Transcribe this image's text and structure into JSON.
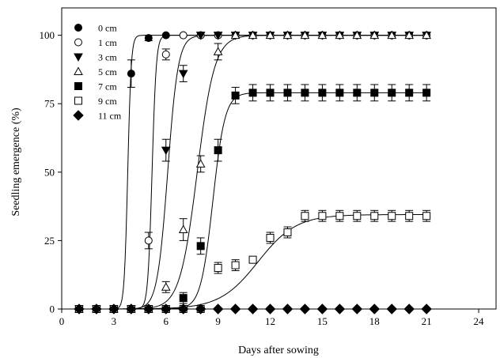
{
  "chart_data": {
    "type": "scatter",
    "xlabel": "Days after sowing",
    "ylabel": "Seedling emergence (%)",
    "xlim": [
      0,
      25
    ],
    "ylim": [
      0,
      110
    ],
    "xticks": [
      "0",
      "3",
      "6",
      "9",
      "12",
      "15",
      "18",
      "21",
      "24"
    ],
    "yticks": [
      "0",
      "25",
      "50",
      "75",
      "100"
    ],
    "grid": false,
    "legend_position": "top-left",
    "series": [
      {
        "name": "0 cm",
        "marker": "filled-circle",
        "fit": {
          "max": 100,
          "x50": 3.8,
          "slope": 0.1
        },
        "points": [
          {
            "x": 1,
            "y": 0,
            "err": 0
          },
          {
            "x": 2,
            "y": 0,
            "err": 0
          },
          {
            "x": 3,
            "y": 0,
            "err": 0
          },
          {
            "x": 4,
            "y": 86,
            "err": 5
          },
          {
            "x": 5,
            "y": 99,
            "err": 1
          },
          {
            "x": 6,
            "y": 100,
            "err": 0
          },
          {
            "x": 7,
            "y": 100,
            "err": 0
          },
          {
            "x": 8,
            "y": 100,
            "err": 0
          },
          {
            "x": 9,
            "y": 100,
            "err": 0
          },
          {
            "x": 10,
            "y": 100,
            "err": 0
          },
          {
            "x": 11,
            "y": 100,
            "err": 0
          },
          {
            "x": 12,
            "y": 100,
            "err": 0
          },
          {
            "x": 13,
            "y": 100,
            "err": 0
          },
          {
            "x": 14,
            "y": 100,
            "err": 0
          },
          {
            "x": 15,
            "y": 100,
            "err": 0
          },
          {
            "x": 16,
            "y": 100,
            "err": 0
          },
          {
            "x": 17,
            "y": 100,
            "err": 0
          },
          {
            "x": 18,
            "y": 100,
            "err": 0
          },
          {
            "x": 19,
            "y": 100,
            "err": 0
          },
          {
            "x": 20,
            "y": 100,
            "err": 0
          },
          {
            "x": 21,
            "y": 100,
            "err": 0
          }
        ]
      },
      {
        "name": "1 cm",
        "marker": "open-circle",
        "fit": {
          "max": 100,
          "x50": 5.2,
          "slope": 0.12
        },
        "points": [
          {
            "x": 1,
            "y": 0,
            "err": 0
          },
          {
            "x": 2,
            "y": 0,
            "err": 0
          },
          {
            "x": 3,
            "y": 0,
            "err": 0
          },
          {
            "x": 4,
            "y": 0,
            "err": 0
          },
          {
            "x": 5,
            "y": 25,
            "err": 3
          },
          {
            "x": 6,
            "y": 93,
            "err": 2
          },
          {
            "x": 7,
            "y": 100,
            "err": 0
          },
          {
            "x": 8,
            "y": 100,
            "err": 0
          },
          {
            "x": 9,
            "y": 100,
            "err": 0
          },
          {
            "x": 10,
            "y": 100,
            "err": 0
          },
          {
            "x": 11,
            "y": 100,
            "err": 0
          },
          {
            "x": 12,
            "y": 100,
            "err": 0
          },
          {
            "x": 13,
            "y": 100,
            "err": 0
          },
          {
            "x": 14,
            "y": 100,
            "err": 0
          },
          {
            "x": 15,
            "y": 100,
            "err": 0
          },
          {
            "x": 16,
            "y": 100,
            "err": 0
          },
          {
            "x": 17,
            "y": 100,
            "err": 0
          },
          {
            "x": 18,
            "y": 100,
            "err": 0
          },
          {
            "x": 19,
            "y": 100,
            "err": 0
          },
          {
            "x": 20,
            "y": 100,
            "err": 0
          },
          {
            "x": 21,
            "y": 100,
            "err": 0
          }
        ]
      },
      {
        "name": "3 cm",
        "marker": "filled-triangle-down",
        "fit": {
          "max": 100,
          "x50": 6.1,
          "slope": 0.3
        },
        "points": [
          {
            "x": 1,
            "y": 0,
            "err": 0
          },
          {
            "x": 2,
            "y": 0,
            "err": 0
          },
          {
            "x": 3,
            "y": 0,
            "err": 0
          },
          {
            "x": 4,
            "y": 0,
            "err": 0
          },
          {
            "x": 5,
            "y": 0,
            "err": 0
          },
          {
            "x": 6,
            "y": 58,
            "err": 4
          },
          {
            "x": 7,
            "y": 86,
            "err": 3
          },
          {
            "x": 8,
            "y": 100,
            "err": 0
          },
          {
            "x": 9,
            "y": 100,
            "err": 0
          },
          {
            "x": 10,
            "y": 100,
            "err": 0
          },
          {
            "x": 11,
            "y": 100,
            "err": 0
          },
          {
            "x": 12,
            "y": 100,
            "err": 0
          },
          {
            "x": 13,
            "y": 100,
            "err": 0
          },
          {
            "x": 14,
            "y": 100,
            "err": 0
          },
          {
            "x": 15,
            "y": 100,
            "err": 0
          },
          {
            "x": 16,
            "y": 100,
            "err": 0
          },
          {
            "x": 17,
            "y": 100,
            "err": 0
          },
          {
            "x": 18,
            "y": 100,
            "err": 0
          },
          {
            "x": 19,
            "y": 100,
            "err": 0
          },
          {
            "x": 20,
            "y": 100,
            "err": 0
          },
          {
            "x": 21,
            "y": 100,
            "err": 0
          }
        ]
      },
      {
        "name": "5 cm",
        "marker": "open-triangle-up",
        "fit": {
          "max": 100,
          "x50": 7.8,
          "slope": 0.5
        },
        "points": [
          {
            "x": 1,
            "y": 0,
            "err": 0
          },
          {
            "x": 2,
            "y": 0,
            "err": 0
          },
          {
            "x": 3,
            "y": 0,
            "err": 0
          },
          {
            "x": 4,
            "y": 0,
            "err": 0
          },
          {
            "x": 5,
            "y": 0,
            "err": 0
          },
          {
            "x": 6,
            "y": 8,
            "err": 2
          },
          {
            "x": 7,
            "y": 29,
            "err": 4
          },
          {
            "x": 8,
            "y": 53,
            "err": 3
          },
          {
            "x": 9,
            "y": 94,
            "err": 3
          },
          {
            "x": 10,
            "y": 100,
            "err": 0
          },
          {
            "x": 11,
            "y": 100,
            "err": 0
          },
          {
            "x": 12,
            "y": 100,
            "err": 0
          },
          {
            "x": 13,
            "y": 100,
            "err": 0
          },
          {
            "x": 14,
            "y": 100,
            "err": 0
          },
          {
            "x": 15,
            "y": 100,
            "err": 0
          },
          {
            "x": 16,
            "y": 100,
            "err": 0
          },
          {
            "x": 17,
            "y": 100,
            "err": 0
          },
          {
            "x": 18,
            "y": 100,
            "err": 0
          },
          {
            "x": 19,
            "y": 100,
            "err": 0
          },
          {
            "x": 20,
            "y": 100,
            "err": 0
          },
          {
            "x": 21,
            "y": 100,
            "err": 0
          }
        ]
      },
      {
        "name": "7 cm",
        "marker": "filled-square",
        "fit": {
          "max": 79,
          "x50": 8.7,
          "slope": 0.35
        },
        "points": [
          {
            "x": 1,
            "y": 0,
            "err": 0
          },
          {
            "x": 2,
            "y": 0,
            "err": 0
          },
          {
            "x": 3,
            "y": 0,
            "err": 0
          },
          {
            "x": 4,
            "y": 0,
            "err": 0
          },
          {
            "x": 5,
            "y": 0,
            "err": 0
          },
          {
            "x": 6,
            "y": 0,
            "err": 0
          },
          {
            "x": 7,
            "y": 4,
            "err": 2
          },
          {
            "x": 8,
            "y": 23,
            "err": 3
          },
          {
            "x": 9,
            "y": 58,
            "err": 4
          },
          {
            "x": 10,
            "y": 78,
            "err": 3
          },
          {
            "x": 11,
            "y": 79,
            "err": 3
          },
          {
            "x": 12,
            "y": 79,
            "err": 3
          },
          {
            "x": 13,
            "y": 79,
            "err": 3
          },
          {
            "x": 14,
            "y": 79,
            "err": 3
          },
          {
            "x": 15,
            "y": 79,
            "err": 3
          },
          {
            "x": 16,
            "y": 79,
            "err": 3
          },
          {
            "x": 17,
            "y": 79,
            "err": 3
          },
          {
            "x": 18,
            "y": 79,
            "err": 3
          },
          {
            "x": 19,
            "y": 79,
            "err": 3
          },
          {
            "x": 20,
            "y": 79,
            "err": 3
          },
          {
            "x": 21,
            "y": 79,
            "err": 3
          }
        ]
      },
      {
        "name": "9 cm",
        "marker": "open-square",
        "fit": {
          "max": 34.5,
          "x50": 11.3,
          "slope": 1.1
        },
        "points": [
          {
            "x": 1,
            "y": 0,
            "err": 0
          },
          {
            "x": 2,
            "y": 0,
            "err": 0
          },
          {
            "x": 3,
            "y": 0,
            "err": 0
          },
          {
            "x": 4,
            "y": 0,
            "err": 0
          },
          {
            "x": 5,
            "y": 0,
            "err": 0
          },
          {
            "x": 6,
            "y": 0,
            "err": 0
          },
          {
            "x": 7,
            "y": 0,
            "err": 0
          },
          {
            "x": 8,
            "y": 0,
            "err": 0
          },
          {
            "x": 9,
            "y": 15,
            "err": 2
          },
          {
            "x": 10,
            "y": 16,
            "err": 2
          },
          {
            "x": 11,
            "y": 18,
            "err": 0
          },
          {
            "x": 12,
            "y": 26,
            "err": 2
          },
          {
            "x": 13,
            "y": 28,
            "err": 2
          },
          {
            "x": 14,
            "y": 34,
            "err": 2
          },
          {
            "x": 15,
            "y": 34,
            "err": 2
          },
          {
            "x": 16,
            "y": 34,
            "err": 2
          },
          {
            "x": 17,
            "y": 34,
            "err": 2
          },
          {
            "x": 18,
            "y": 34,
            "err": 2
          },
          {
            "x": 19,
            "y": 34,
            "err": 2
          },
          {
            "x": 20,
            "y": 34,
            "err": 2
          },
          {
            "x": 21,
            "y": 34,
            "err": 2
          }
        ]
      },
      {
        "name": "11 cm",
        "marker": "filled-diamond",
        "fit": null,
        "points": [
          {
            "x": 1,
            "y": 0,
            "err": 0
          },
          {
            "x": 2,
            "y": 0,
            "err": 0
          },
          {
            "x": 3,
            "y": 0,
            "err": 0
          },
          {
            "x": 4,
            "y": 0,
            "err": 0
          },
          {
            "x": 5,
            "y": 0,
            "err": 0
          },
          {
            "x": 6,
            "y": 0,
            "err": 0
          },
          {
            "x": 7,
            "y": 0,
            "err": 0
          },
          {
            "x": 8,
            "y": 0,
            "err": 0
          },
          {
            "x": 9,
            "y": 0,
            "err": 0
          },
          {
            "x": 10,
            "y": 0,
            "err": 0
          },
          {
            "x": 11,
            "y": 0,
            "err": 0
          },
          {
            "x": 12,
            "y": 0,
            "err": 0
          },
          {
            "x": 13,
            "y": 0,
            "err": 0
          },
          {
            "x": 14,
            "y": 0,
            "err": 0
          },
          {
            "x": 15,
            "y": 0,
            "err": 0
          },
          {
            "x": 16,
            "y": 0,
            "err": 0
          },
          {
            "x": 17,
            "y": 0,
            "err": 0
          },
          {
            "x": 18,
            "y": 0,
            "err": 0
          },
          {
            "x": 19,
            "y": 0,
            "err": 0
          },
          {
            "x": 20,
            "y": 0,
            "err": 0
          },
          {
            "x": 21,
            "y": 0,
            "err": 0
          }
        ]
      }
    ]
  }
}
